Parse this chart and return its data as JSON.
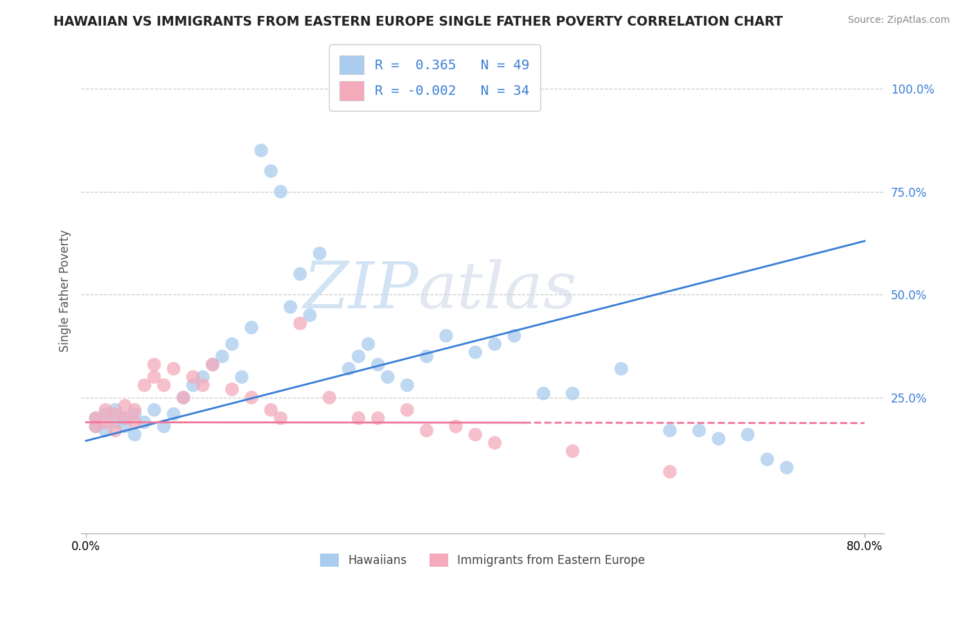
{
  "title": "HAWAIIAN VS IMMIGRANTS FROM EASTERN EUROPE SINGLE FATHER POVERTY CORRELATION CHART",
  "source": "Source: ZipAtlas.com",
  "ylabel": "Single Father Poverty",
  "hawaiians_R": 0.365,
  "hawaiians_N": 49,
  "eastern_europe_R": -0.002,
  "eastern_europe_N": 34,
  "hawaiians_color": "#aaccee",
  "eastern_europe_color": "#f4aabb",
  "trend_blue": "#3a7fd5",
  "trend_pink": "#ee7799",
  "background_color": "#ffffff",
  "xlim": [
    -0.005,
    0.82
  ],
  "ylim": [
    -0.08,
    1.1
  ],
  "xtick_positions": [
    0.0,
    0.8
  ],
  "xtick_labels": [
    "0.0%",
    "80.0%"
  ],
  "ytick_positions": [
    0.25,
    0.5,
    0.75,
    1.0
  ],
  "ytick_labels": [
    "25.0%",
    "50.0%",
    "75.0%",
    "100.0%"
  ],
  "hawaiians_x": [
    0.01,
    0.01,
    0.02,
    0.02,
    0.03,
    0.03,
    0.04,
    0.04,
    0.05,
    0.05,
    0.06,
    0.07,
    0.08,
    0.09,
    0.1,
    0.11,
    0.12,
    0.13,
    0.14,
    0.15,
    0.16,
    0.17,
    0.18,
    0.19,
    0.2,
    0.21,
    0.22,
    0.23,
    0.24,
    0.27,
    0.28,
    0.29,
    0.3,
    0.31,
    0.33,
    0.35,
    0.37,
    0.4,
    0.42,
    0.44,
    0.47,
    0.5,
    0.55,
    0.6,
    0.63,
    0.65,
    0.68,
    0.7,
    0.72
  ],
  "hawaiians_y": [
    0.18,
    0.2,
    0.17,
    0.21,
    0.19,
    0.22,
    0.18,
    0.2,
    0.16,
    0.21,
    0.19,
    0.22,
    0.18,
    0.21,
    0.25,
    0.28,
    0.3,
    0.33,
    0.35,
    0.38,
    0.3,
    0.42,
    0.85,
    0.8,
    0.75,
    0.47,
    0.55,
    0.45,
    0.6,
    0.32,
    0.35,
    0.38,
    0.33,
    0.3,
    0.28,
    0.35,
    0.4,
    0.36,
    0.38,
    0.4,
    0.26,
    0.26,
    0.32,
    0.17,
    0.17,
    0.15,
    0.16,
    0.1,
    0.08
  ],
  "eastern_europe_x": [
    0.01,
    0.01,
    0.02,
    0.02,
    0.03,
    0.03,
    0.04,
    0.04,
    0.05,
    0.05,
    0.06,
    0.07,
    0.07,
    0.08,
    0.09,
    0.1,
    0.11,
    0.12,
    0.13,
    0.15,
    0.17,
    0.19,
    0.2,
    0.22,
    0.25,
    0.28,
    0.3,
    0.33,
    0.35,
    0.38,
    0.4,
    0.42,
    0.5,
    0.6
  ],
  "eastern_europe_y": [
    0.18,
    0.2,
    0.19,
    0.22,
    0.17,
    0.21,
    0.2,
    0.23,
    0.19,
    0.22,
    0.28,
    0.3,
    0.33,
    0.28,
    0.32,
    0.25,
    0.3,
    0.28,
    0.33,
    0.27,
    0.25,
    0.22,
    0.2,
    0.43,
    0.25,
    0.2,
    0.2,
    0.22,
    0.17,
    0.18,
    0.16,
    0.14,
    0.12,
    0.07
  ],
  "blue_trend_x0": 0.0,
  "blue_trend_y0": 0.145,
  "blue_trend_x1": 0.8,
  "blue_trend_y1": 0.63,
  "pink_trend_x0": 0.0,
  "pink_trend_y0": 0.19,
  "pink_trend_x1": 0.8,
  "pink_trend_y1": 0.188
}
